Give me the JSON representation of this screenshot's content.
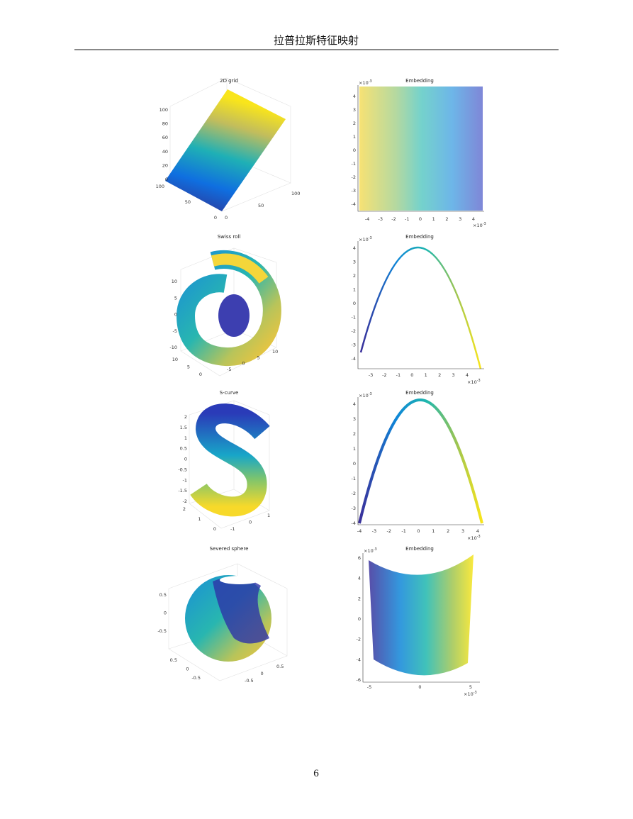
{
  "header": {
    "title": "拉普拉斯特征映射"
  },
  "exponent_label": {
    "base": "×10",
    "exp": "-3"
  },
  "figures": [
    {
      "title": "2D grid",
      "z_ticks": [
        100,
        80,
        60,
        40,
        20,
        0
      ],
      "y_ticks": [
        100,
        50,
        0
      ],
      "x_ticks": [
        0,
        50,
        100
      ]
    },
    {
      "title": "Embedding",
      "y_ticks": [
        4,
        3,
        2,
        1,
        0,
        -1,
        -2,
        -3,
        -4
      ],
      "x_ticks": [
        -4,
        -3,
        -2,
        -1,
        0,
        1,
        2,
        3,
        4
      ]
    },
    {
      "title": "Swiss roll",
      "z_ticks": [
        10,
        5,
        0,
        -5,
        -10
      ],
      "y_ticks": [
        10,
        5,
        0
      ],
      "x_ticks": [
        -5,
        0,
        5,
        10
      ]
    },
    {
      "title": "Embedding",
      "y_ticks": [
        4,
        3,
        2,
        1,
        0,
        -1,
        -2,
        -3,
        -4
      ],
      "x_ticks": [
        -3,
        -2,
        -1,
        0,
        1,
        2,
        3,
        4
      ]
    },
    {
      "title": "S-curve",
      "z_ticks": [
        2,
        1.5,
        1,
        0.5,
        0,
        -0.5,
        -1,
        -1.5,
        -2
      ],
      "y_ticks": [
        2,
        1,
        0
      ],
      "x_ticks": [
        -1,
        0,
        1
      ]
    },
    {
      "title": "Embedding",
      "y_ticks": [
        4,
        3,
        2,
        1,
        0,
        -1,
        -2,
        -3,
        -4
      ],
      "x_ticks": [
        -4,
        -3,
        -2,
        -1,
        0,
        1,
        2,
        3,
        4
      ]
    },
    {
      "title": "Severed sphere",
      "z_ticks": [
        0.5,
        0,
        -0.5
      ],
      "y_ticks": [
        0.5,
        0,
        -0.5
      ],
      "x_ticks": [
        -0.5,
        0,
        0.5
      ]
    },
    {
      "title": "Embedding",
      "y_ticks": [
        6,
        4,
        2,
        0,
        -2,
        -4,
        -6
      ],
      "x_ticks": [
        -5,
        0,
        5
      ]
    }
  ],
  "page_number": "6"
}
